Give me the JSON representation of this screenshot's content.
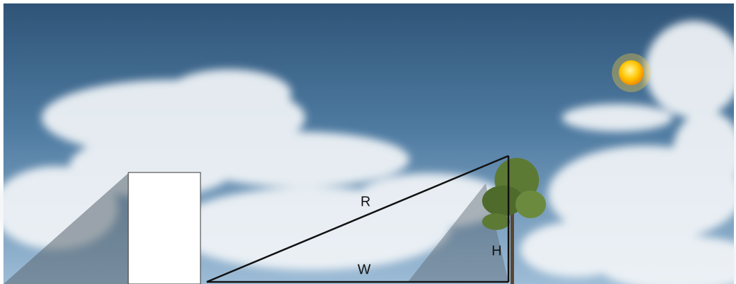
{
  "triangle": {
    "hypotenuse": "R",
    "base": "W",
    "height": "H"
  }
}
